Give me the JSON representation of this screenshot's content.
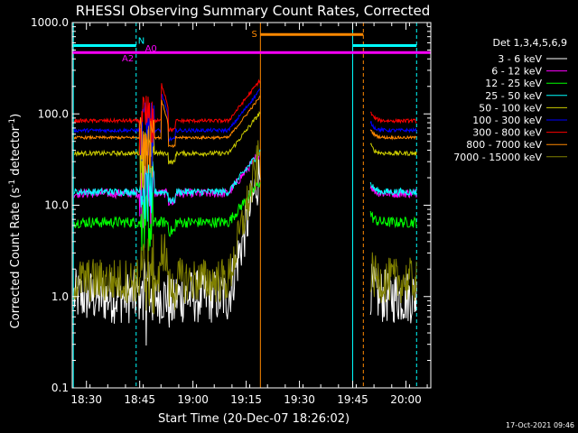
{
  "chart_data": {
    "type": "line",
    "title": "RHESSI Observing Summary Count Rates, Corrected",
    "xlabel": "Start Time (20-Dec-07 18:26:02)",
    "ylabel_main": "Corrected Count Rate (s",
    "ylabel_sup1": "-1",
    "ylabel_mid": " detector",
    "ylabel_sup2": "-1",
    "ylabel_end": ")",
    "yscale": "log",
    "ylim": [
      0.1,
      1000
    ],
    "xlim_minutes": [
      0,
      101
    ],
    "x_ticks": [
      {
        "label": "18:30",
        "min": 4
      },
      {
        "label": "18:45",
        "min": 19
      },
      {
        "label": "19:00",
        "min": 34
      },
      {
        "label": "19:15",
        "min": 49
      },
      {
        "label": "19:30",
        "min": 64
      },
      {
        "label": "19:45",
        "min": 79
      },
      {
        "label": "20:00",
        "min": 94
      }
    ],
    "y_ticks": [
      {
        "label": "1000.0",
        "v": 1000
      },
      {
        "label": "100.0",
        "v": 100
      },
      {
        "label": "10.0",
        "v": 10
      },
      {
        "label": "1.0",
        "v": 1
      },
      {
        "label": "0.1",
        "v": 0.1
      }
    ],
    "legend_title": "Det 1,3,4,5,6,9",
    "legend_placement": "top-right",
    "series": [
      {
        "name": "3 - 6 keV",
        "color": "#ffffff",
        "base": 1.0,
        "noise": 0.6
      },
      {
        "name": "6 - 12 keV",
        "color": "#ff00ff",
        "base": 13.5,
        "noise": 0.1
      },
      {
        "name": "12 - 25 keV",
        "color": "#00ff00",
        "base": 6.5,
        "noise": 0.12
      },
      {
        "name": "25 - 50 keV",
        "color": "#00ffff",
        "base": 14,
        "noise": 0.08
      },
      {
        "name": "50 - 100 keV",
        "color": "#cccc00",
        "base": 37,
        "noise": 0.05
      },
      {
        "name": "100 - 300 keV",
        "color": "#0000ff",
        "base": 66,
        "noise": 0.04
      },
      {
        "name": "300 - 800 keV",
        "color": "#ff0000",
        "base": 84,
        "noise": 0.04
      },
      {
        "name": "800 - 7000 keV",
        "color": "#ff8800",
        "base": 55,
        "noise": 0.03
      },
      {
        "name": "7000 - 15000 keV",
        "color": "#808000",
        "base": 1.5,
        "noise": 0.5
      }
    ],
    "flags": [
      {
        "label": "N",
        "color": "#00ffff",
        "level": 560
      },
      {
        "label": "A0",
        "color": "#ff00ff",
        "level": 470
      },
      {
        "label": "A2",
        "color": "#ff00ff",
        "level": 470
      },
      {
        "label": "S",
        "color": "#ff8800",
        "level": 740
      }
    ],
    "footer_date": "17-Oct-2021 09:46"
  }
}
